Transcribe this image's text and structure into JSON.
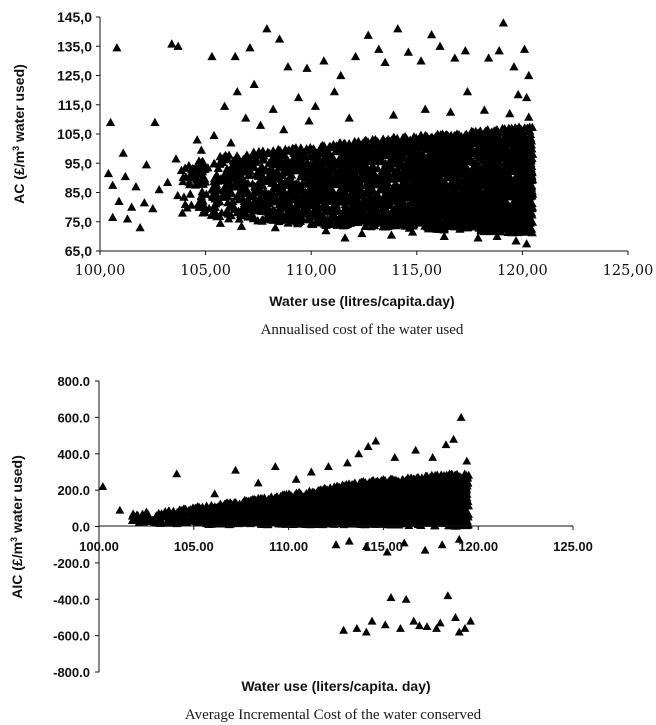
{
  "chart_data": [
    {
      "type": "scatter",
      "title": "",
      "caption": "Annualised cost of the water used",
      "xlabel": "Water use (litres/capita.day)",
      "ylabel_parts": [
        "AC (£/m",
        "3",
        " water used)"
      ],
      "xlim": [
        100,
        125
      ],
      "ylim": [
        65,
        145
      ],
      "x_ticks": [
        "100,00",
        "105,00",
        "110,00",
        "115,00",
        "120,00",
        "125,00"
      ],
      "y_ticks": [
        "65,0",
        "75,0",
        "85,0",
        "95,0",
        "105,0",
        "115,0",
        "125,0",
        "135,0",
        "145,0"
      ],
      "marker": "triangle",
      "series": [
        {
          "points": [
            [
              100.8,
              134.5
            ],
            [
              103.4,
              135.8
            ],
            [
              103.7,
              135
            ],
            [
              100.5,
              109
            ],
            [
              102.6,
              109
            ],
            [
              101.1,
              98.5
            ],
            [
              102.2,
              94.5
            ],
            [
              100.4,
              91.5
            ],
            [
              101.2,
              90.5
            ],
            [
              101.7,
              87
            ],
            [
              100.6,
              87.5
            ],
            [
              100.9,
              82
            ],
            [
              101.5,
              80
            ],
            [
              102.1,
              81.5
            ],
            [
              102.8,
              86
            ],
            [
              103.2,
              88.5
            ],
            [
              100.6,
              76.5
            ],
            [
              101.3,
              76
            ],
            [
              102.5,
              79.5
            ],
            [
              103.6,
              96.5
            ],
            [
              104.3,
              90
            ],
            [
              104.8,
              99.5
            ],
            [
              105.3,
              131.5
            ],
            [
              106.4,
              131.5
            ],
            [
              107.1,
              134.5
            ],
            [
              107.9,
              141
            ],
            [
              108.5,
              137.5
            ],
            [
              106.5,
              119.5
            ],
            [
              107.3,
              122
            ],
            [
              108.9,
              128
            ],
            [
              109.8,
              127.5
            ],
            [
              110.6,
              130
            ],
            [
              111.4,
              125
            ],
            [
              112.1,
              131.5
            ],
            [
              113.2,
              134
            ],
            [
              114.1,
              141
            ],
            [
              114.6,
              133
            ],
            [
              115.2,
              130
            ],
            [
              116.1,
              135
            ],
            [
              116.8,
              131
            ],
            [
              117.3,
              133.5
            ],
            [
              118.4,
              131
            ],
            [
              118.9,
              133.5
            ],
            [
              119.1,
              143
            ],
            [
              119.6,
              128
            ],
            [
              120.1,
              134
            ],
            [
              120.3,
              125
            ],
            [
              112.7,
              138.8
            ],
            [
              113.5,
              129.5
            ],
            [
              115.7,
              139
            ],
            [
              105.9,
              114.5
            ],
            [
              106.9,
              110.5
            ],
            [
              108.2,
              113.5
            ],
            [
              109.4,
              117.5
            ],
            [
              110.2,
              114.5
            ],
            [
              111.1,
              119.5
            ],
            [
              117.4,
              119.5
            ],
            [
              119.8,
              118.5
            ],
            [
              120.2,
              117.5
            ],
            [
              104.6,
              103
            ],
            [
              105.4,
              104.5
            ],
            [
              106.2,
              102
            ],
            [
              107.6,
              108
            ],
            [
              108.7,
              106.5
            ],
            [
              109.9,
              109.5
            ],
            [
              111.8,
              110.5
            ],
            [
              113.9,
              111.5
            ],
            [
              115.4,
              113.5
            ],
            [
              116.6,
              112.5
            ],
            [
              118.2,
              113.2
            ],
            [
              119.4,
              112
            ],
            [
              120.3,
              110.8
            ],
            [
              101.9,
              73
            ],
            [
              103.9,
              78
            ],
            [
              104.7,
              81.5
            ],
            [
              105.7,
              74.5
            ],
            [
              106.7,
              73.5
            ],
            [
              108.3,
              73
            ],
            [
              110.7,
              72
            ],
            [
              112.4,
              71
            ],
            [
              114.8,
              71.5
            ],
            [
              116.3,
              70
            ],
            [
              117.9,
              69.5
            ],
            [
              119.7,
              68.5
            ],
            [
              120.2,
              67.5
            ],
            [
              118.8,
              70
            ],
            [
              113.8,
              70.5
            ],
            [
              111.6,
              69.5
            ]
          ]
        }
      ],
      "dense_band": {
        "x_range": [
          103.5,
          120.5
        ],
        "lower": [
          [
            103.5,
            80
          ],
          [
            106,
            76
          ],
          [
            110,
            74
          ],
          [
            114,
            73
          ],
          [
            117,
            72
          ],
          [
            120.5,
            71
          ]
        ],
        "upper": [
          [
            103.5,
            94
          ],
          [
            106,
            98
          ],
          [
            110,
            101
          ],
          [
            114,
            104
          ],
          [
            117,
            105.5
          ],
          [
            120.5,
            108
          ]
        ]
      }
    },
    {
      "type": "scatter",
      "title": "",
      "caption": "Average Incremental Cost of the water conserved",
      "xlabel": "Water use (liters/capita. day)",
      "ylabel_parts": [
        "AIC (£/m",
        "3",
        " water used)"
      ],
      "xlim": [
        100,
        125
      ],
      "ylim": [
        -800,
        800
      ],
      "x_ticks": [
        "100.00",
        "105.00",
        "110.00",
        "115.00",
        "120.00",
        "125.00"
      ],
      "y_ticks": [
        "-800.0",
        "-600.0",
        "-400.0",
        "-200.0",
        "0.0",
        "200.0",
        "400.0",
        "600.0",
        "800.0"
      ],
      "marker": "triangle",
      "series": [
        {
          "points": [
            [
              100.2,
              220
            ],
            [
              101.1,
              90
            ],
            [
              101.8,
              70
            ],
            [
              102.5,
              80
            ],
            [
              103.4,
              60
            ],
            [
              104.1,
              290
            ],
            [
              105.2,
              110
            ],
            [
              106.1,
              180
            ],
            [
              107.2,
              310
            ],
            [
              108.4,
              240
            ],
            [
              109.3,
              330
            ],
            [
              110.4,
              260
            ],
            [
              111.2,
              300
            ],
            [
              112.1,
              330
            ],
            [
              113.1,
              350
            ],
            [
              113.7,
              400
            ],
            [
              114.2,
              440
            ],
            [
              114.6,
              470
            ],
            [
              115.6,
              380
            ],
            [
              116.7,
              420
            ],
            [
              117.6,
              380
            ],
            [
              118.3,
              450
            ],
            [
              118.7,
              480
            ],
            [
              119.1,
              600
            ],
            [
              119.4,
              360
            ],
            [
              113.2,
              -80
            ],
            [
              112.5,
              -100
            ],
            [
              114.1,
              -110
            ],
            [
              115.2,
              -140
            ],
            [
              116.1,
              -90
            ],
            [
              117.2,
              -130
            ],
            [
              118.1,
              -100
            ],
            [
              119.0,
              -70
            ],
            [
              112.9,
              -570
            ],
            [
              113.6,
              -560
            ],
            [
              114.4,
              -520
            ],
            [
              115.1,
              -540
            ],
            [
              115.9,
              -560
            ],
            [
              116.6,
              -520
            ],
            [
              117.3,
              -550
            ],
            [
              118.0,
              -530
            ],
            [
              118.8,
              -500
            ],
            [
              119.3,
              -560
            ],
            [
              119.6,
              -520
            ],
            [
              114.1,
              -580
            ],
            [
              115.4,
              -390
            ],
            [
              116.2,
              -400
            ],
            [
              118.4,
              -380
            ],
            [
              117.8,
              -560
            ],
            [
              116.9,
              -545
            ],
            [
              119.0,
              -580
            ]
          ]
        }
      ],
      "dense_band": {
        "x_range": [
          101.5,
          119.5
        ],
        "lower": [
          [
            101.5,
            20
          ],
          [
            106,
            10
          ],
          [
            110,
            10
          ],
          [
            114,
            10
          ],
          [
            119.5,
            0
          ]
        ],
        "upper": [
          [
            101.5,
            60
          ],
          [
            106,
            120
          ],
          [
            110,
            180
          ],
          [
            114,
            250
          ],
          [
            119.5,
            300
          ]
        ]
      }
    }
  ]
}
